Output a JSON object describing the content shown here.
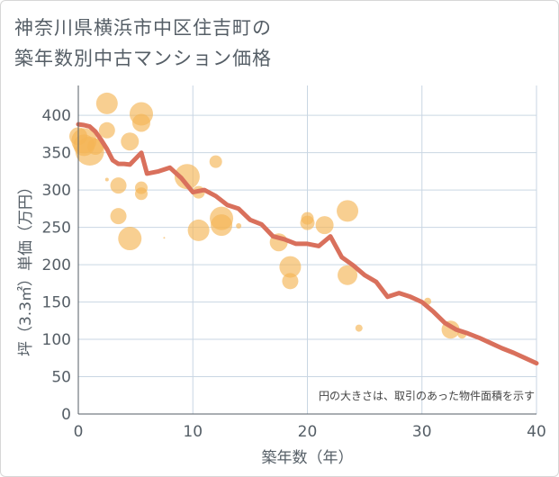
{
  "chart_title": {
    "line1": "神奈川県横浜市中区住吉町の",
    "line2": "築年数別中古マンション価格"
  },
  "chart_data": {
    "type": "scatter",
    "title": "神奈川県横浜市中区住吉町の築年数別中古マンション価格",
    "xlabel": "築年数（年）",
    "ylabel": "坪（3.3㎡）単価（万円）",
    "xlim": [
      0,
      40
    ],
    "ylim": [
      0,
      440
    ],
    "xticks": [
      0,
      10,
      20,
      30,
      40
    ],
    "yticks": [
      0,
      50,
      100,
      150,
      200,
      250,
      300,
      350,
      400
    ],
    "grid": true,
    "annotation": "円の大きさは、取引のあった物件面積を示す",
    "colors": {
      "bubbles": "#f5b556",
      "trend": "#d9705c",
      "grid": "#c9d6e3"
    },
    "bubbles": [
      {
        "x": 0,
        "y": 372,
        "size": 10
      },
      {
        "x": 0.5,
        "y": 360,
        "size": 12
      },
      {
        "x": 0.5,
        "y": 366,
        "size": 14
      },
      {
        "x": 1,
        "y": 352,
        "size": 16
      },
      {
        "x": 1.5,
        "y": 358,
        "size": 9
      },
      {
        "x": 2.5,
        "y": 416,
        "size": 12
      },
      {
        "x": 2.5,
        "y": 380,
        "size": 9
      },
      {
        "x": 2.5,
        "y": 314,
        "size": 2
      },
      {
        "x": 3.5,
        "y": 306,
        "size": 9
      },
      {
        "x": 3.5,
        "y": 265,
        "size": 9
      },
      {
        "x": 4.5,
        "y": 365,
        "size": 10
      },
      {
        "x": 4.5,
        "y": 235,
        "size": 13
      },
      {
        "x": 5.5,
        "y": 402,
        "size": 13
      },
      {
        "x": 5.5,
        "y": 390,
        "size": 10
      },
      {
        "x": 5.5,
        "y": 303,
        "size": 7
      },
      {
        "x": 5.5,
        "y": 295,
        "size": 7
      },
      {
        "x": 7.5,
        "y": 236,
        "size": 1
      },
      {
        "x": 9.5,
        "y": 318,
        "size": 14
      },
      {
        "x": 10.5,
        "y": 297,
        "size": 7
      },
      {
        "x": 10.5,
        "y": 246,
        "size": 12
      },
      {
        "x": 12,
        "y": 338,
        "size": 7
      },
      {
        "x": 12.5,
        "y": 262,
        "size": 13
      },
      {
        "x": 12.5,
        "y": 253,
        "size": 12
      },
      {
        "x": 14,
        "y": 252,
        "size": 3
      },
      {
        "x": 17.5,
        "y": 230,
        "size": 10
      },
      {
        "x": 18.5,
        "y": 197,
        "size": 12
      },
      {
        "x": 18.5,
        "y": 178,
        "size": 9
      },
      {
        "x": 20,
        "y": 262,
        "size": 7
      },
      {
        "x": 20,
        "y": 256,
        "size": 8
      },
      {
        "x": 21.5,
        "y": 253,
        "size": 10
      },
      {
        "x": 23.5,
        "y": 272,
        "size": 12
      },
      {
        "x": 23.5,
        "y": 186,
        "size": 11
      },
      {
        "x": 24.5,
        "y": 115,
        "size": 4
      },
      {
        "x": 30.5,
        "y": 151,
        "size": 4
      },
      {
        "x": 32.5,
        "y": 113,
        "size": 10
      },
      {
        "x": 33.5,
        "y": 107,
        "size": 5
      }
    ],
    "series": [
      {
        "x": [
          0,
          0.5,
          1,
          1.5,
          2,
          2.5,
          3,
          3.5,
          4,
          4.5,
          5,
          5.5,
          6,
          7,
          8,
          9,
          10,
          11,
          12,
          13,
          14,
          15,
          16,
          17,
          18,
          19,
          20,
          21,
          22,
          23,
          24,
          25,
          26,
          27,
          28,
          29,
          30,
          31,
          32,
          33,
          34,
          35,
          36,
          37,
          38,
          39,
          40
        ],
        "values": [
          388,
          387,
          385,
          378,
          367,
          355,
          340,
          335,
          335,
          334,
          342,
          350,
          322,
          325,
          330,
          316,
          297,
          300,
          292,
          280,
          275,
          260,
          254,
          238,
          234,
          228,
          228,
          225,
          238,
          210,
          199,
          186,
          177,
          157,
          162,
          157,
          150,
          137,
          122,
          113,
          108,
          102,
          95,
          88,
          82,
          75,
          68
        ]
      }
    ]
  }
}
